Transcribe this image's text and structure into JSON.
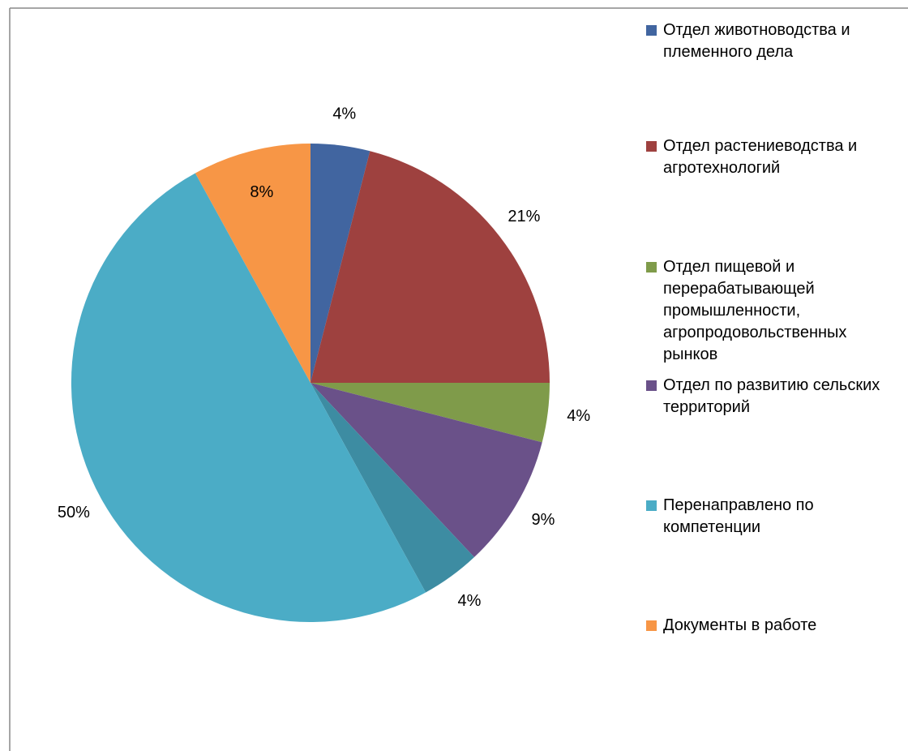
{
  "chart_data": {
    "type": "pie",
    "categories": [
      "Отдел животноводства и племенного дела",
      "Отдел растениеводства и агротехнологий",
      "Отдел пищевой и перерабатывающей промышленности, агропродовольственных рынков",
      "Отдел по развитию сельских территорий",
      null,
      "Перенаправлено по компетенции",
      "Документы в работе"
    ],
    "values": [
      4,
      21,
      4,
      9,
      4,
      50,
      8
    ],
    "value_labels": [
      "4%",
      "21%",
      "4%",
      "9%",
      "4%",
      "50%",
      "8%"
    ],
    "colors": [
      "#4165a0",
      "#9e413f",
      "#7f9b4a",
      "#6a5189",
      "#3d8ca2",
      "#4bacc6",
      "#f79646"
    ],
    "legend": "right"
  }
}
